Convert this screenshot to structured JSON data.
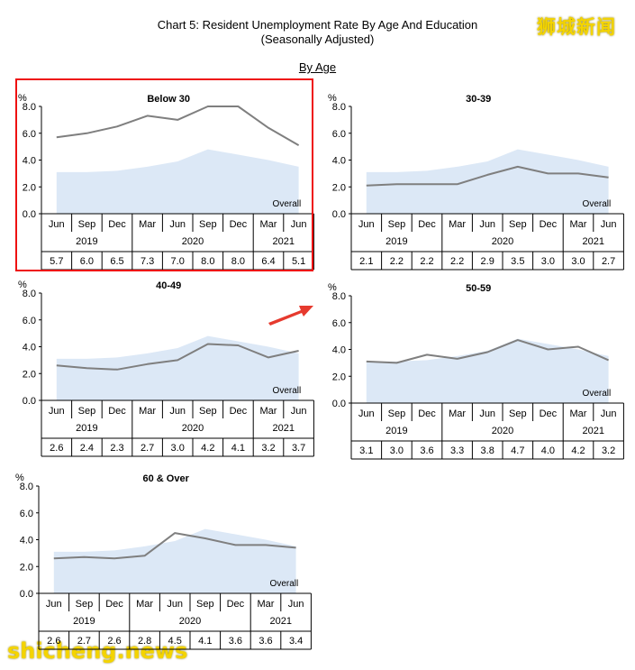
{
  "title_line1": "Chart 5: Resident Unemployment Rate By Age And Education",
  "title_line2": "(Seasonally Adjusted)",
  "section": "By Age",
  "watermark_top": "狮城新闻",
  "watermark_bottom": "shicheng.news",
  "colors": {
    "line": "#7f7f7f",
    "overall_area": "#dce8f6",
    "highlight": "#e11111",
    "arrow": "#e63a2e",
    "watermark": "#f4d400"
  },
  "chart_data": [
    {
      "type": "line",
      "title": "Below 30",
      "ylabel": "%",
      "ylim": [
        0,
        8
      ],
      "yticks": [
        "0.0",
        "2.0",
        "4.0",
        "6.0",
        "8.0"
      ],
      "categories": [
        "Jun",
        "Sep",
        "Dec",
        "Mar",
        "Jun",
        "Sep",
        "Dec",
        "Mar",
        "Jun"
      ],
      "years": [
        {
          "label": "2019",
          "span": 3
        },
        {
          "label": "2020",
          "span": 4
        },
        {
          "label": "2021",
          "span": 2
        }
      ],
      "values": [
        5.7,
        6.0,
        6.5,
        7.3,
        7.0,
        8.0,
        8.0,
        6.4,
        5.1
      ],
      "table": [
        "5.7",
        "6.0",
        "6.5",
        "7.3",
        "7.0",
        "8.0",
        "8.0",
        "6.4",
        "5.1"
      ],
      "overall": [
        3.1,
        3.1,
        3.2,
        3.5,
        3.9,
        4.8,
        4.4,
        4.0,
        3.5
      ],
      "overall_label": "Overall",
      "highlighted": true
    },
    {
      "type": "line",
      "title": "30-39",
      "ylabel": "%",
      "ylim": [
        0,
        8
      ],
      "yticks": [
        "0.0",
        "2.0",
        "4.0",
        "6.0",
        "8.0"
      ],
      "categories": [
        "Jun",
        "Sep",
        "Dec",
        "Mar",
        "Jun",
        "Sep",
        "Dec",
        "Mar",
        "Jun"
      ],
      "years": [
        {
          "label": "2019",
          "span": 3
        },
        {
          "label": "2020",
          "span": 4
        },
        {
          "label": "2021",
          "span": 2
        }
      ],
      "values": [
        2.1,
        2.2,
        2.2,
        2.2,
        2.9,
        3.5,
        3.0,
        3.0,
        2.7
      ],
      "table": [
        "2.1",
        "2.2",
        "2.2",
        "2.2",
        "2.9",
        "3.5",
        "3.0",
        "3.0",
        "2.7"
      ],
      "overall": [
        3.1,
        3.1,
        3.2,
        3.5,
        3.9,
        4.8,
        4.4,
        4.0,
        3.5
      ],
      "overall_label": "Overall",
      "highlighted": false
    },
    {
      "type": "line",
      "title": "40-49",
      "ylabel": "%",
      "ylim": [
        0,
        8
      ],
      "yticks": [
        "0.0",
        "2.0",
        "4.0",
        "6.0",
        "8.0"
      ],
      "categories": [
        "Jun",
        "Sep",
        "Dec",
        "Mar",
        "Jun",
        "Sep",
        "Dec",
        "Mar",
        "Jun"
      ],
      "years": [
        {
          "label": "2019",
          "span": 3
        },
        {
          "label": "2020",
          "span": 4
        },
        {
          "label": "2021",
          "span": 2
        }
      ],
      "values": [
        2.6,
        2.4,
        2.3,
        2.7,
        3.0,
        4.2,
        4.1,
        3.2,
        3.7
      ],
      "table": [
        "2.6",
        "2.4",
        "2.3",
        "2.7",
        "3.0",
        "4.2",
        "4.1",
        "3.2",
        "3.7"
      ],
      "overall": [
        3.1,
        3.1,
        3.2,
        3.5,
        3.9,
        4.8,
        4.4,
        4.0,
        3.5
      ],
      "overall_label": "Overall",
      "highlighted": false
    },
    {
      "type": "line",
      "title": "50-59",
      "ylabel": "%",
      "ylim": [
        0,
        8
      ],
      "yticks": [
        "0.0",
        "2.0",
        "4.0",
        "6.0",
        "8.0"
      ],
      "categories": [
        "Jun",
        "Sep",
        "Dec",
        "Mar",
        "Jun",
        "Sep",
        "Dec",
        "Mar",
        "Jun"
      ],
      "years": [
        {
          "label": "2019",
          "span": 3
        },
        {
          "label": "2020",
          "span": 4
        },
        {
          "label": "2021",
          "span": 2
        }
      ],
      "values": [
        3.1,
        3.0,
        3.6,
        3.3,
        3.8,
        4.7,
        4.0,
        4.2,
        3.2
      ],
      "table": [
        "3.1",
        "3.0",
        "3.6",
        "3.3",
        "3.8",
        "4.7",
        "4.0",
        "4.2",
        "3.2"
      ],
      "overall": [
        3.1,
        3.1,
        3.2,
        3.5,
        3.9,
        4.8,
        4.4,
        4.0,
        3.5
      ],
      "overall_label": "Overall",
      "highlighted": false
    },
    {
      "type": "line",
      "title": "60 & Over",
      "ylabel": "%",
      "ylim": [
        0,
        8
      ],
      "yticks": [
        "0.0",
        "2.0",
        "4.0",
        "6.0",
        "8.0"
      ],
      "categories": [
        "Jun",
        "Sep",
        "Dec",
        "Mar",
        "Jun",
        "Sep",
        "Dec",
        "Mar",
        "Jun"
      ],
      "years": [
        {
          "label": "2019",
          "span": 3
        },
        {
          "label": "2020",
          "span": 4
        },
        {
          "label": "2021",
          "span": 2
        }
      ],
      "values": [
        2.6,
        2.7,
        2.6,
        2.8,
        4.5,
        4.1,
        3.6,
        3.6,
        3.4
      ],
      "table": [
        "2.6",
        "2.7",
        "2.6",
        "2.8",
        "4.5",
        "4.1",
        "3.6",
        "3.6",
        "3.4"
      ],
      "overall": [
        3.1,
        3.1,
        3.2,
        3.5,
        3.9,
        4.8,
        4.4,
        4.0,
        3.5
      ],
      "overall_label": "Overall",
      "highlighted": false
    }
  ]
}
